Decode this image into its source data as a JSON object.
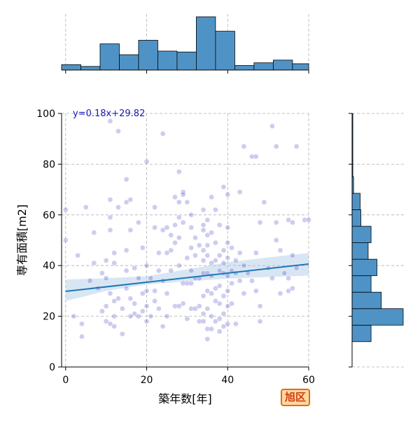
{
  "chart_data": {
    "type": "scatter",
    "xlabel": "築年数[年]",
    "ylabel": "専有面積[m2]",
    "xlim": [
      -1,
      60
    ],
    "ylim": [
      0,
      100
    ],
    "x_ticks": [
      0,
      20,
      40,
      60
    ],
    "y_ticks": [
      0,
      20,
      40,
      60,
      80,
      100
    ],
    "grid": true,
    "annotation": "y=0.18x+29.82",
    "badge": "旭区",
    "colors": {
      "points": "#1a1ab4",
      "fit_line": "#1f77b4",
      "confidence_band": "#a8c8e6",
      "histogram_fill": "#4f93c6",
      "annotation_text": "#1a1ab4",
      "badge_border": "#e06d14",
      "badge_fill": "#ffd9a0",
      "badge_text": "#d23a0e"
    },
    "regression": {
      "slope": 0.18,
      "intercept": 29.82
    },
    "confidence_band": [
      [
        0,
        26.0,
        34.5
      ],
      [
        10,
        30.0,
        35.0
      ],
      [
        20,
        32.5,
        35.8
      ],
      [
        30,
        33.8,
        38.5
      ],
      [
        40,
        34.8,
        41.3
      ],
      [
        50,
        35.5,
        43.2
      ],
      [
        60,
        36.0,
        45.0
      ]
    ],
    "x_histogram": {
      "bins": [
        [
          -1,
          3.75
        ],
        [
          3.75,
          8.5
        ],
        [
          8.5,
          13.25
        ],
        [
          13.25,
          18
        ],
        [
          18,
          22.75
        ],
        [
          22.75,
          27.5
        ],
        [
          27.5,
          32.25
        ],
        [
          32.25,
          37
        ],
        [
          37,
          41.75
        ],
        [
          41.75,
          46.5
        ],
        [
          46.5,
          51.25
        ],
        [
          51.25,
          56
        ],
        [
          56,
          60
        ]
      ],
      "counts": [
        6,
        4,
        29,
        17,
        33,
        21,
        20,
        59,
        43,
        5,
        8,
        11,
        7
      ]
    },
    "y_histogram": {
      "bins": [
        [
          10,
          16.5
        ],
        [
          16.5,
          23
        ],
        [
          23,
          29.5
        ],
        [
          29.5,
          36
        ],
        [
          36,
          42.5
        ],
        [
          42.5,
          49
        ],
        [
          49,
          55.5
        ],
        [
          55.5,
          62
        ],
        [
          62,
          68.5
        ],
        [
          68.5,
          75
        ],
        [
          75,
          81.5
        ],
        [
          81.5,
          88
        ],
        [
          88,
          94.5
        ],
        [
          94.5,
          100
        ]
      ],
      "counts": [
        26,
        70,
        40,
        26,
        34,
        22,
        26,
        12,
        11,
        2,
        1,
        1,
        1,
        1
      ]
    },
    "points": [
      [
        0,
        62
      ],
      [
        0,
        50
      ],
      [
        2,
        20
      ],
      [
        3,
        44
      ],
      [
        4,
        17
      ],
      [
        4,
        12
      ],
      [
        5,
        63
      ],
      [
        6,
        34
      ],
      [
        7,
        53
      ],
      [
        7,
        41
      ],
      [
        8,
        31
      ],
      [
        9,
        22
      ],
      [
        9,
        37
      ],
      [
        10,
        35
      ],
      [
        10,
        24
      ],
      [
        10,
        42
      ],
      [
        10,
        18
      ],
      [
        11,
        97
      ],
      [
        11,
        66
      ],
      [
        11,
        59
      ],
      [
        11,
        54
      ],
      [
        11,
        17
      ],
      [
        11,
        29
      ],
      [
        12,
        45
      ],
      [
        12,
        41
      ],
      [
        12,
        26
      ],
      [
        12,
        20
      ],
      [
        12,
        16
      ],
      [
        13,
        93
      ],
      [
        13,
        63
      ],
      [
        13,
        27
      ],
      [
        14,
        23
      ],
      [
        14,
        13
      ],
      [
        15,
        74
      ],
      [
        15,
        65
      ],
      [
        15,
        46
      ],
      [
        15,
        38
      ],
      [
        15,
        31
      ],
      [
        16,
        66
      ],
      [
        16,
        54
      ],
      [
        16,
        27
      ],
      [
        16,
        20
      ],
      [
        17,
        39
      ],
      [
        17,
        25
      ],
      [
        17,
        21
      ],
      [
        18,
        57
      ],
      [
        18,
        35
      ],
      [
        18,
        20
      ],
      [
        19,
        47
      ],
      [
        19,
        29
      ],
      [
        19,
        22
      ],
      [
        20,
        81
      ],
      [
        20,
        40
      ],
      [
        20,
        30
      ],
      [
        20,
        18
      ],
      [
        20,
        24
      ],
      [
        21,
        35
      ],
      [
        21,
        20
      ],
      [
        22,
        63
      ],
      [
        22,
        55
      ],
      [
        22,
        30
      ],
      [
        22,
        26
      ],
      [
        23,
        45
      ],
      [
        23,
        38
      ],
      [
        23,
        23
      ],
      [
        24,
        92
      ],
      [
        24,
        54
      ],
      [
        24,
        34
      ],
      [
        24,
        16
      ],
      [
        25,
        55
      ],
      [
        25,
        45
      ],
      [
        25,
        29
      ],
      [
        25,
        20
      ],
      [
        26,
        52
      ],
      [
        26,
        38
      ],
      [
        26,
        46
      ],
      [
        27,
        67
      ],
      [
        27,
        56
      ],
      [
        27,
        49
      ],
      [
        27,
        24
      ],
      [
        28,
        77
      ],
      [
        28,
        65
      ],
      [
        28,
        59
      ],
      [
        28,
        51
      ],
      [
        28,
        40
      ],
      [
        28,
        24
      ],
      [
        29,
        69
      ],
      [
        29,
        68
      ],
      [
        29,
        57
      ],
      [
        29,
        33
      ],
      [
        29,
        25
      ],
      [
        30,
        65
      ],
      [
        30,
        43
      ],
      [
        30,
        33
      ],
      [
        30,
        19
      ],
      [
        31,
        60
      ],
      [
        31,
        55
      ],
      [
        31,
        47
      ],
      [
        31,
        38
      ],
      [
        31,
        33
      ],
      [
        31,
        23
      ],
      [
        32,
        51
      ],
      [
        32,
        44
      ],
      [
        32,
        35
      ],
      [
        32,
        23
      ],
      [
        33,
        48
      ],
      [
        33,
        35
      ],
      [
        33,
        24
      ],
      [
        33,
        18
      ],
      [
        34,
        62
      ],
      [
        34,
        56
      ],
      [
        34,
        54
      ],
      [
        34,
        46
      ],
      [
        34,
        42
      ],
      [
        34,
        37
      ],
      [
        34,
        28
      ],
      [
        34,
        18
      ],
      [
        34,
        21
      ],
      [
        35,
        58
      ],
      [
        35,
        52
      ],
      [
        35,
        48
      ],
      [
        35,
        44
      ],
      [
        35,
        37
      ],
      [
        35,
        30
      ],
      [
        35,
        23
      ],
      [
        35,
        15
      ],
      [
        35,
        11
      ],
      [
        36,
        67
      ],
      [
        36,
        53
      ],
      [
        36,
        41
      ],
      [
        36,
        36
      ],
      [
        36,
        29
      ],
      [
        36,
        20
      ],
      [
        36,
        15
      ],
      [
        37,
        62
      ],
      [
        37,
        49
      ],
      [
        37,
        42
      ],
      [
        37,
        31
      ],
      [
        37,
        26
      ],
      [
        37,
        18
      ],
      [
        38,
        56
      ],
      [
        38,
        44
      ],
      [
        38,
        38
      ],
      [
        38,
        32
      ],
      [
        38,
        25
      ],
      [
        38,
        19
      ],
      [
        38,
        14
      ],
      [
        39,
        71
      ],
      [
        39,
        46
      ],
      [
        39,
        41
      ],
      [
        39,
        37
      ],
      [
        39,
        28
      ],
      [
        39,
        21
      ],
      [
        39,
        16
      ],
      [
        40,
        68
      ],
      [
        40,
        55
      ],
      [
        40,
        49
      ],
      [
        40,
        43
      ],
      [
        40,
        36
      ],
      [
        40,
        30
      ],
      [
        40,
        24
      ],
      [
        40,
        17
      ],
      [
        41,
        47
      ],
      [
        41,
        38
      ],
      [
        41,
        25
      ],
      [
        41,
        33
      ],
      [
        42,
        42
      ],
      [
        42,
        37
      ],
      [
        42,
        17
      ],
      [
        43,
        69
      ],
      [
        43,
        45
      ],
      [
        43,
        34
      ],
      [
        44,
        87
      ],
      [
        44,
        40
      ],
      [
        44,
        29
      ],
      [
        45,
        37
      ],
      [
        46,
        83
      ],
      [
        46,
        34
      ],
      [
        47,
        83
      ],
      [
        47,
        45
      ],
      [
        47,
        30
      ],
      [
        48,
        57
      ],
      [
        48,
        24
      ],
      [
        48,
        18
      ],
      [
        49,
        65
      ],
      [
        50,
        39
      ],
      [
        51,
        95
      ],
      [
        51,
        35
      ],
      [
        52,
        87
      ],
      [
        52,
        57
      ],
      [
        52,
        50
      ],
      [
        53,
        46
      ],
      [
        53,
        29
      ],
      [
        54,
        37
      ],
      [
        55,
        58
      ],
      [
        55,
        35
      ],
      [
        55,
        30
      ],
      [
        56,
        57
      ],
      [
        56,
        44
      ],
      [
        56,
        31
      ],
      [
        57,
        87
      ],
      [
        57,
        39
      ],
      [
        59,
        58
      ],
      [
        60,
        58
      ]
    ]
  }
}
